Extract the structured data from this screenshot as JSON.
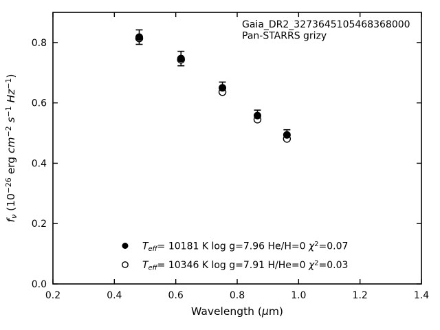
{
  "figure": {
    "background": "#ffffff",
    "foreground": "#000000"
  },
  "chart_data": {
    "type": "scatter",
    "title": "",
    "xlabel": "Wavelength (μm)",
    "ylabel": "f_ν (10^−26 erg cm^−2 s^−1 Hz^−1)",
    "xlim": [
      0.2,
      1.4
    ],
    "ylim": [
      0.0,
      0.9
    ],
    "xticks": [
      0.2,
      0.4,
      0.6,
      0.8,
      1.0,
      1.2,
      1.4
    ],
    "xtick_labels": [
      "0.2",
      "0.4",
      "0.6",
      "0.8",
      "1.0",
      "1.2",
      "1.4"
    ],
    "yticks": [
      0.0,
      0.2,
      0.4,
      0.6,
      0.8
    ],
    "ytick_labels": [
      "0.0",
      "0.2",
      "0.4",
      "0.6",
      "0.8"
    ],
    "grid": false,
    "tick_direction": "in",
    "legend_position": "lower-left-inside",
    "x": [
      0.481,
      0.617,
      0.752,
      0.866,
      0.962
    ],
    "series": [
      {
        "name": "Teff= 10181 K  log g=7.96  He/H=0  chi2=0.07",
        "marker": "filled-circle",
        "color": "#000000",
        "values": [
          0.818,
          0.747,
          0.65,
          0.558,
          0.494
        ],
        "yerr": [
          0.024,
          0.024,
          0.019,
          0.018,
          0.017
        ]
      },
      {
        "name": "Teff= 10346 K  log g=7.91  H/He=0  chi2=0.03",
        "marker": "open-circle",
        "color": "#000000",
        "values": [
          0.814,
          0.743,
          0.636,
          0.545,
          0.481
        ]
      }
    ],
    "annotations": [
      "Gaia_DR2_3273645105468368000",
      "Pan-STARRS grizy"
    ],
    "xlabel_segments": [
      {
        "t": "Wavelength ("
      },
      {
        "t": "μ",
        "i": true
      },
      {
        "t": "m)"
      }
    ],
    "ylabel_segments": [
      {
        "t": "f",
        "i": true
      },
      {
        "t": "ν",
        "i": true,
        "pos": "sub"
      },
      {
        "t": " (10"
      },
      {
        "t": "−26",
        "pos": "sup"
      },
      {
        "t": " erg "
      },
      {
        "t": "cm",
        "i": true
      },
      {
        "t": "−2",
        "pos": "sup"
      },
      {
        "t": " "
      },
      {
        "t": "s",
        "i": true
      },
      {
        "t": "−1",
        "pos": "sup"
      },
      {
        "t": " "
      },
      {
        "t": "Hz",
        "i": true
      },
      {
        "t": "−1",
        "pos": "sup"
      },
      {
        "t": ")"
      }
    ],
    "legend_rows": [
      {
        "marker": "filled-circle",
        "segments": [
          {
            "t": "T",
            "i": true
          },
          {
            "t": "eff",
            "i": true,
            "pos": "sub"
          },
          {
            "t": "= 10181 K  log g=7.96  He/H=0  "
          },
          {
            "t": "χ",
            "i": true
          },
          {
            "t": "2",
            "pos": "sup"
          },
          {
            "t": "=0.07"
          }
        ]
      },
      {
        "marker": "open-circle",
        "segments": [
          {
            "t": "T",
            "i": true
          },
          {
            "t": "eff",
            "i": true,
            "pos": "sub"
          },
          {
            "t": "= 10346 K  log g=7.91  H/He=0  "
          },
          {
            "t": "χ",
            "i": true
          },
          {
            "t": "2",
            "pos": "sup"
          },
          {
            "t": "=0.03"
          }
        ]
      }
    ]
  }
}
